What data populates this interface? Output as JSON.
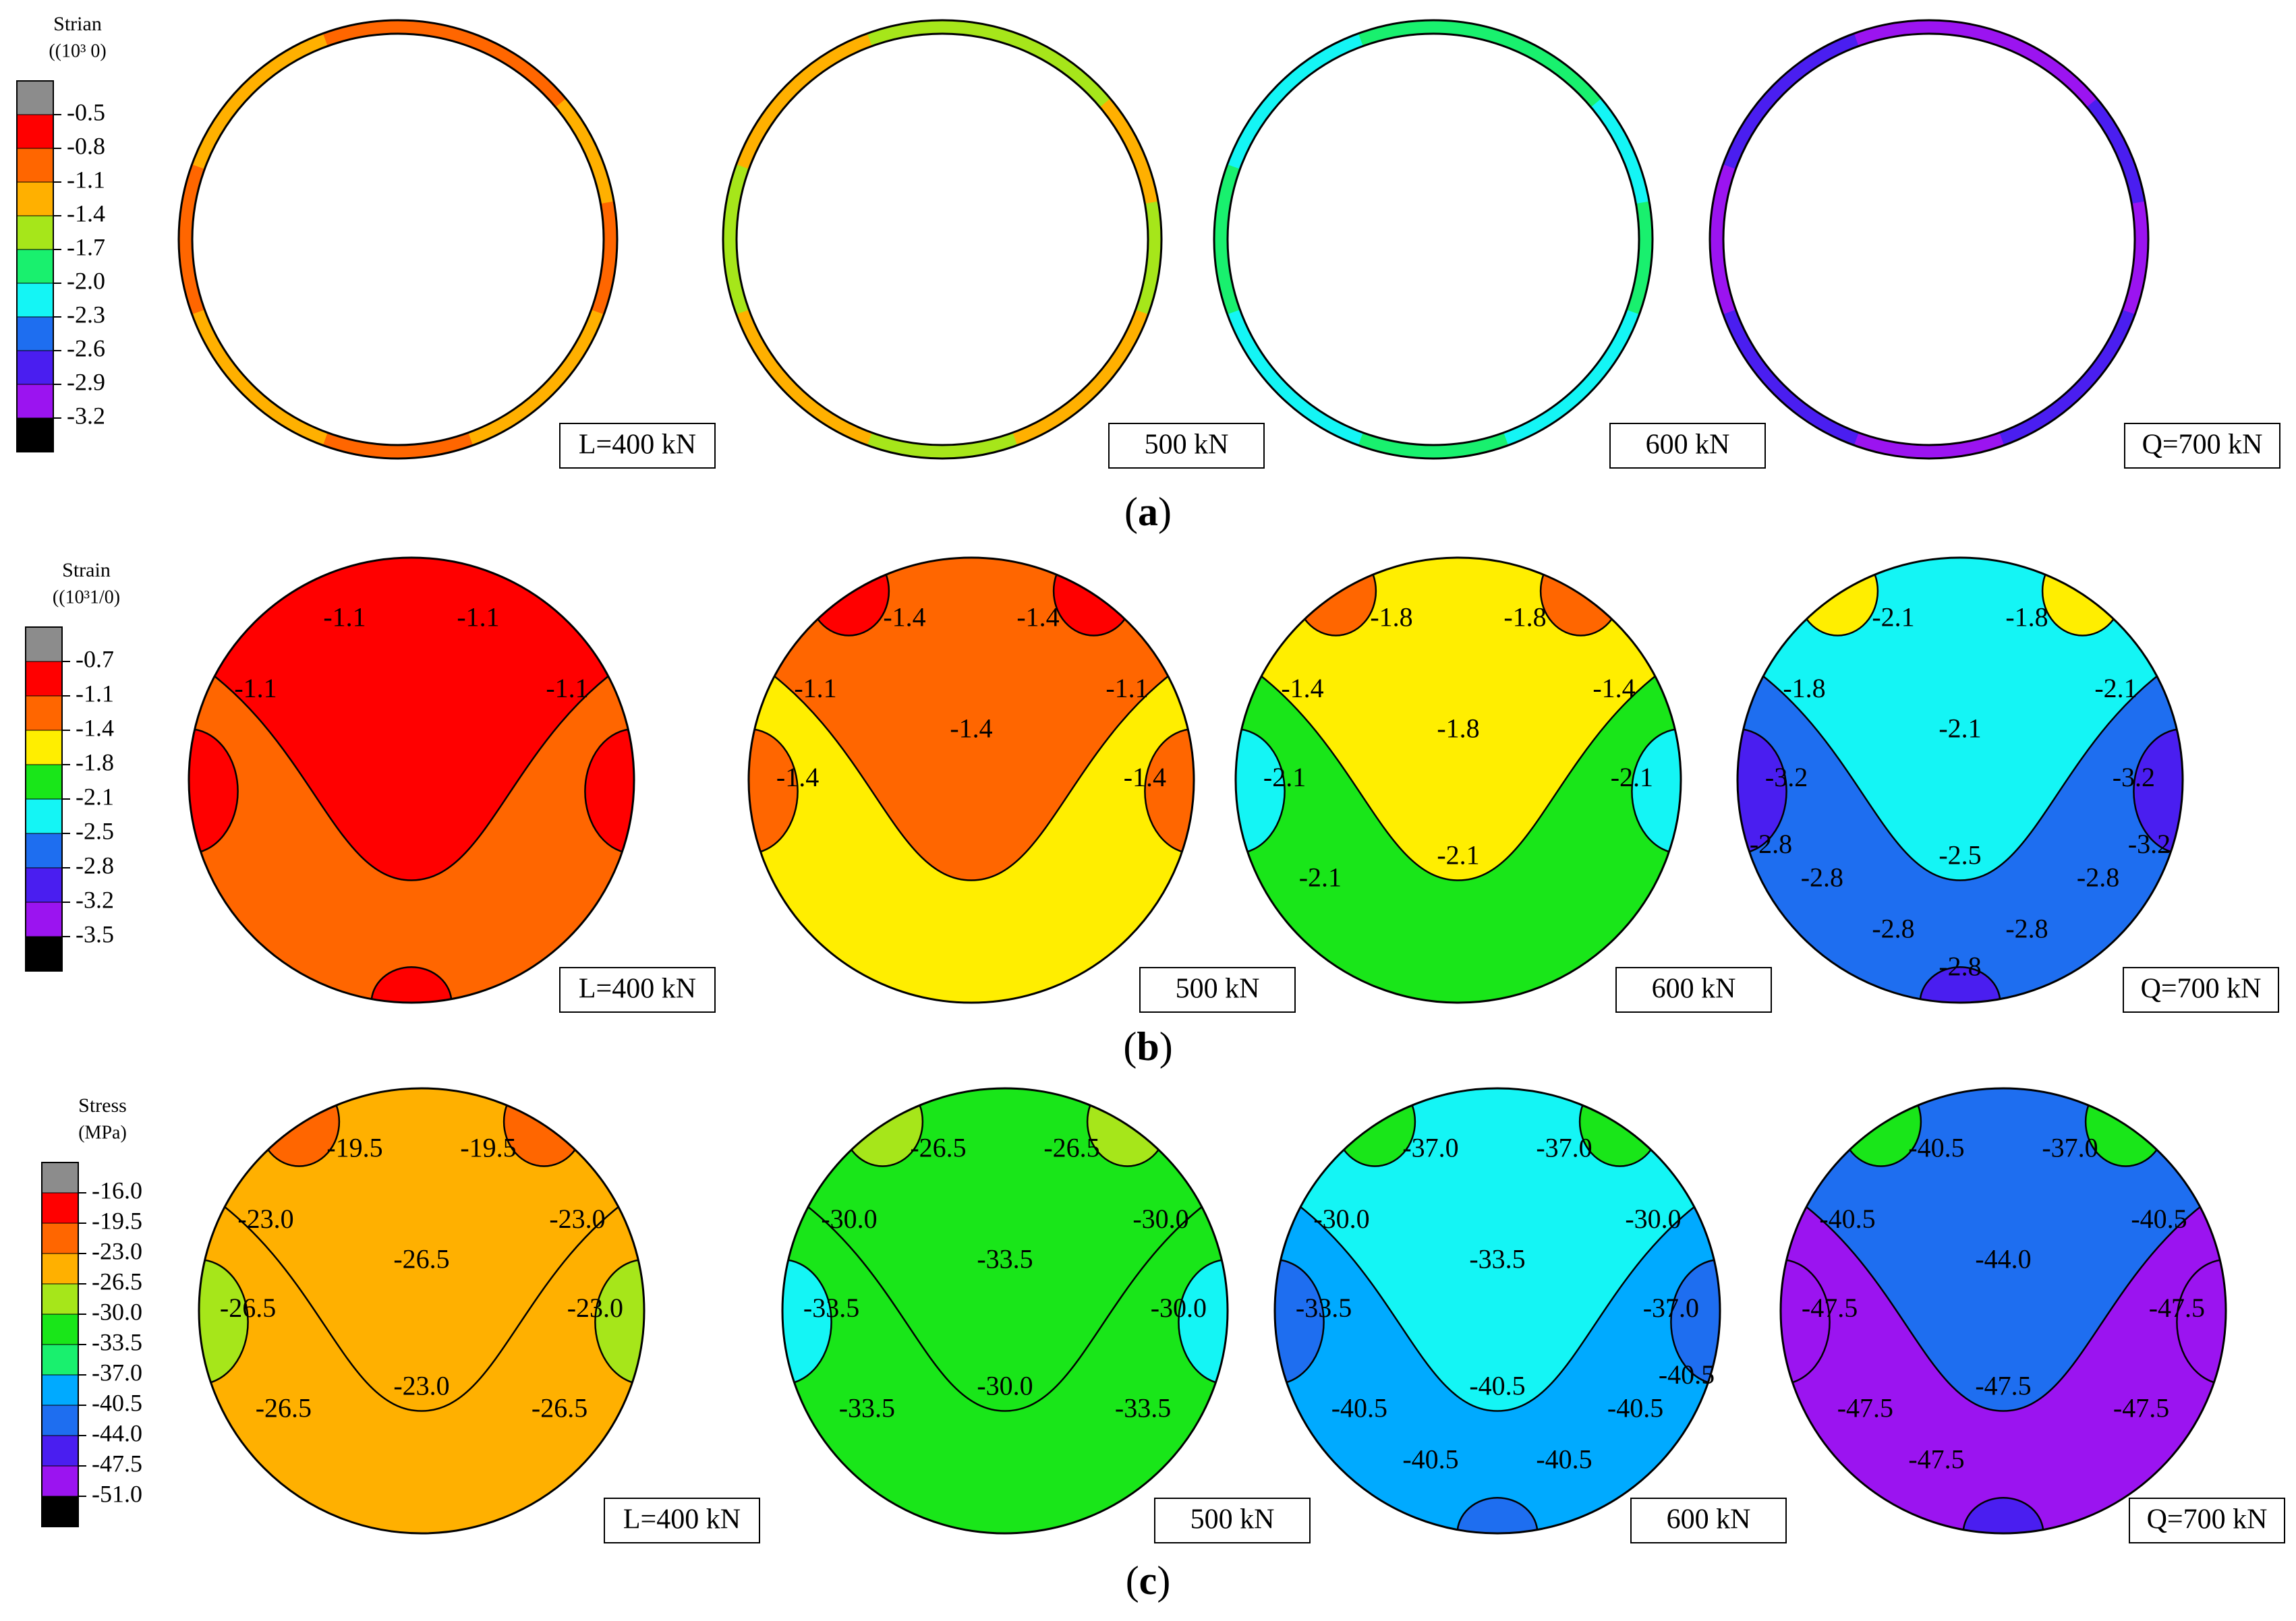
{
  "palette": {
    "gray": "#8c8c8c",
    "red": "#ff0000",
    "orange": "#ff6600",
    "amber": "#ffb000",
    "yellow": "#ffee00",
    "lime": "#a6e61a",
    "green": "#19e619",
    "mint": "#19f06e",
    "cyan": "#14f5f5",
    "sky": "#00aaff",
    "blue": "#1e6ef0",
    "indigo": "#4a1ef0",
    "violet": "#9b14f0",
    "black": "#000000"
  },
  "rows": [
    {
      "caption_letter": "a",
      "legend": {
        "title_line1": "Strian",
        "title_line2": "((10³   0)",
        "labels": [
          "-0.5",
          "-0.8",
          "-1.1",
          "-1.4",
          "-1.7",
          "-2.0",
          "-2.3",
          "-2.6",
          "-2.9",
          "-3.2"
        ],
        "colors": [
          "gray",
          "red",
          "orange",
          "amber",
          "lime",
          "mint",
          "cyan",
          "blue",
          "indigo",
          "violet",
          "black"
        ]
      },
      "panels": [
        {
          "load_label": "L=400 kN",
          "type": "ring",
          "base": "orange",
          "accent": "amber",
          "contours": []
        },
        {
          "load_label": "500 kN",
          "type": "ring",
          "base": "lime",
          "accent": "amber",
          "contours": []
        },
        {
          "load_label": "600 kN",
          "type": "ring",
          "base": "mint",
          "accent": "cyan",
          "contours": []
        },
        {
          "load_label": "Q=700 kN",
          "type": "ring",
          "base": "violet",
          "accent": "indigo",
          "contours": []
        }
      ]
    },
    {
      "caption_letter": "b",
      "legend": {
        "title_line1": "Strain",
        "title_line2": "((10³1/0)",
        "labels": [
          "-0.7",
          "-1.1",
          "-1.4",
          "-1.8",
          "-2.1",
          "-2.5",
          "-2.8",
          "-3.2",
          "-3.5"
        ],
        "colors": [
          "gray",
          "red",
          "orange",
          "yellow",
          "green",
          "cyan",
          "blue",
          "indigo",
          "violet",
          "black"
        ]
      },
      "panels": [
        {
          "load_label": "L=400 kN",
          "type": "disk",
          "base": "orange",
          "top": "red",
          "sides": "red",
          "corner": "",
          "bottom": "red",
          "contours": [
            "-1.1",
            "-1.1",
            "-1.1",
            "-1.1"
          ]
        },
        {
          "load_label": "500 kN",
          "type": "disk",
          "base": "yellow",
          "top": "orange",
          "sides": "orange",
          "corner": "red",
          "bottom": "",
          "contours": [
            "-1.4",
            "-1.4",
            "-1.1",
            "-1.1",
            "-1.4",
            "-1.4",
            "-1.4"
          ]
        },
        {
          "load_label": "600 kN",
          "type": "disk",
          "base": "green",
          "top": "yellow",
          "sides": "cyan",
          "corner": "orange",
          "bottom": "",
          "contours": [
            "-1.8",
            "-1.8",
            "-1.4",
            "-1.4",
            "-1.8",
            "-2.1",
            "-2.1",
            "-2.1",
            "-2.1"
          ]
        },
        {
          "load_label": "Q=700 kN",
          "type": "disk",
          "base": "blue",
          "top": "cyan",
          "sides": "indigo",
          "corner": "yellow",
          "bottom": "indigo",
          "contours": [
            "-2.1",
            "-1.8",
            "-1.8",
            "-2.1",
            "-2.1",
            "-3.2",
            "-3.2",
            "-2.5",
            "-2.8",
            "-2.8",
            "-2.8",
            "-2.8",
            "-3.2",
            "-2.8",
            "-2.8"
          ]
        }
      ]
    },
    {
      "caption_letter": "c",
      "legend": {
        "title_line1": "Stress",
        "title_line2": "(MPa)",
        "labels": [
          "-16.0",
          "-19.5",
          "-23.0",
          "-26.5",
          "-30.0",
          "-33.5",
          "-37.0",
          "-40.5",
          "-44.0",
          "-47.5",
          "-51.0"
        ],
        "colors": [
          "gray",
          "red",
          "orange",
          "amber",
          "lime",
          "green",
          "mint",
          "sky",
          "blue",
          "indigo",
          "violet",
          "black"
        ]
      },
      "panels": [
        {
          "load_label": "L=400 kN",
          "type": "disk",
          "base": "amber",
          "top": "amber",
          "sides": "lime",
          "corner": "orange",
          "bottom": "",
          "contours": [
            "-19.5",
            "-19.5",
            "-23.0",
            "-23.0",
            "-26.5",
            "-26.5",
            "-23.0",
            "-23.0",
            "-26.5",
            "-26.5"
          ]
        },
        {
          "load_label": "500 kN",
          "type": "disk",
          "base": "green",
          "top": "green",
          "sides": "cyan",
          "corner": "lime",
          "bottom": "",
          "contours": [
            "-26.5",
            "-26.5",
            "-30.0",
            "-30.0",
            "-33.5",
            "-33.5",
            "-30.0",
            "-30.0",
            "-33.5",
            "-33.5"
          ]
        },
        {
          "load_label": "600 kN",
          "type": "disk",
          "base": "sky",
          "top": "cyan",
          "sides": "blue",
          "corner": "green",
          "bottom": "blue",
          "contours": [
            "-37.0",
            "-37.0",
            "-30.0",
            "-30.0",
            "-33.5",
            "-33.5",
            "-37.0",
            "-40.5",
            "-40.5",
            "-40.5",
            "-40.5",
            "-40.5",
            "-40.5"
          ]
        },
        {
          "load_label": "Q=700 kN",
          "type": "disk",
          "base": "violet",
          "top": "blue",
          "sides": "violet",
          "corner": "green",
          "bottom": "indigo",
          "contours": [
            "-40.5",
            "-37.0",
            "-40.5",
            "-40.5",
            "-44.0",
            "-47.5",
            "-47.5",
            "-47.5",
            "-47.5",
            "-47.5",
            "-47.5"
          ]
        }
      ]
    }
  ]
}
